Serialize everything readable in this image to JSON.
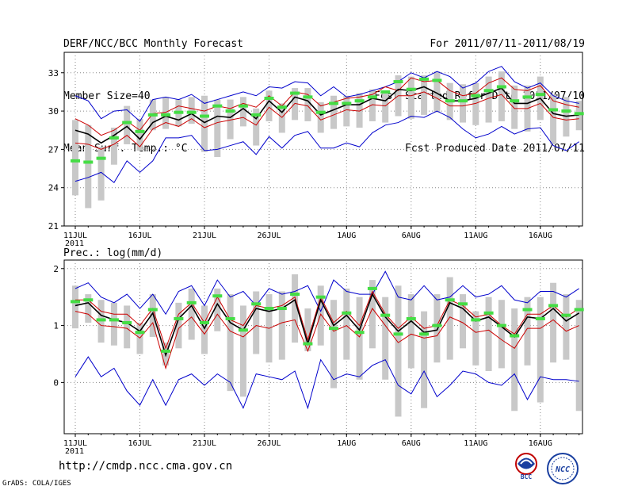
{
  "header": {
    "title": "DERF/NCC/BCC Monthly Forecast",
    "member_size": "Member Size=40",
    "variable": "Mean Surf. Temp.: °C",
    "period": "For 2011/07/11-2011/08/19",
    "start_date": "Fcst Started Refer Date 2011/07/10",
    "produced_date": "Fcst Produced Date 2011/07/11"
  },
  "footer": {
    "url": "http://cmdp.ncc.cma.gov.cn",
    "credit": "GrADS: COLA/IGES",
    "logo_bcc_text": "BCC",
    "logo_ncc_text": "NCC"
  },
  "colors": {
    "max_min": "#0000cc",
    "spread": "#cc0000",
    "mean": "#000000",
    "member_mean": "#44dd44",
    "box": "#c8c8c8",
    "grid": "#888888"
  },
  "chart_data": [
    {
      "type": "line",
      "title": "Mean Surf. Temp.: °C",
      "x_start": "2011-07-11",
      "x_count": 40,
      "x_tick_labels": [
        "11JUL",
        "16JUL",
        "21JUL",
        "26JUL",
        "1AUG",
        "6AUG",
        "11AUG",
        "16AUG"
      ],
      "x_tick_index": [
        0,
        5,
        10,
        15,
        21,
        26,
        31,
        36
      ],
      "x_year_label": "2011",
      "ylim": [
        21,
        34.6
      ],
      "y_ticks": [
        21,
        24,
        27,
        30,
        33
      ],
      "series": [
        {
          "name": "max",
          "color": "#0000cc",
          "values": [
            31.2,
            30.8,
            29.4,
            30,
            30.1,
            29.2,
            30.9,
            31.1,
            30.9,
            31.3,
            30.6,
            30.9,
            31.2,
            31.5,
            31.2,
            31.9,
            31.8,
            32.3,
            32.2,
            31.2,
            31.9,
            31.1,
            31.3,
            31.6,
            31.9,
            32.3,
            33,
            32.6,
            33.1,
            32.7,
            31.8,
            32.2,
            33.1,
            33.5,
            32.3,
            31.8,
            32.2,
            31.2,
            30.8,
            30.6
          ]
        },
        {
          "name": "spread-upper",
          "color": "#cc0000",
          "values": [
            29.4,
            28.9,
            28.1,
            28.5,
            29.2,
            28.5,
            29.8,
            29.9,
            30.4,
            30.2,
            30,
            30.4,
            30.2,
            30.6,
            30.3,
            31.2,
            30.4,
            31.5,
            31.3,
            30.4,
            30.7,
            31,
            31.1,
            31.3,
            31.9,
            31.6,
            32.6,
            32.3,
            32.4,
            31.6,
            31.2,
            31.4,
            32.2,
            32.6,
            31.7,
            31.6,
            32,
            30.8,
            30.5,
            30.3
          ]
        },
        {
          "name": "ensemble-mean",
          "color": "#000000",
          "values": [
            28.5,
            28.2,
            27.5,
            28.1,
            28.8,
            27.8,
            29.1,
            29.6,
            29.3,
            29.8,
            29.1,
            29.6,
            29.5,
            30.2,
            29.4,
            30.8,
            29.9,
            31.1,
            30.8,
            29.7,
            30.1,
            30.5,
            30.5,
            31,
            30.8,
            31.7,
            31.6,
            31.9,
            31.4,
            30.8,
            30.8,
            31,
            31.4,
            31.8,
            30.6,
            30.6,
            31,
            29.8,
            29.6,
            29.7
          ]
        },
        {
          "name": "spread-lower",
          "color": "#cc0000",
          "values": [
            27.5,
            27.4,
            27,
            27.4,
            28.1,
            27.2,
            28.6,
            29.1,
            28.8,
            29.4,
            28.7,
            29.1,
            29.3,
            29.5,
            28.9,
            30.3,
            29.5,
            30.6,
            30.4,
            29.3,
            29.7,
            30.1,
            30,
            30.5,
            30.4,
            31.2,
            31.2,
            31.5,
            31,
            30.4,
            30.4,
            30.6,
            31,
            31.3,
            30.2,
            30.2,
            30.6,
            29.5,
            29.3,
            29.4
          ]
        },
        {
          "name": "min",
          "color": "#0000cc",
          "values": [
            24.5,
            24.8,
            25.2,
            24.4,
            26.1,
            25.2,
            26.1,
            27.9,
            27.9,
            28.1,
            26.9,
            27,
            27.3,
            27.6,
            26.6,
            28,
            27.1,
            28.1,
            28.4,
            27.1,
            27.1,
            27.5,
            27.2,
            28.3,
            28.9,
            29.1,
            29.6,
            29.5,
            30,
            29.5,
            28.6,
            27.9,
            28.2,
            28.8,
            28.2,
            28.6,
            28.7,
            27.3,
            26.9,
            27.6
          ]
        }
      ],
      "member_mean": [
        26.1,
        26,
        26.3,
        27.9,
        29.1,
        28.4,
        29.7,
        29.7,
        29.9,
        29.9,
        29.6,
        30.4,
        30,
        30.4,
        29.7,
        31,
        30.3,
        31.4,
        31.1,
        29.9,
        30.6,
        30.6,
        30.8,
        31.1,
        31.5,
        32.3,
        31.7,
        32.5,
        32.4,
        30.8,
        30.8,
        31.2,
        31.6,
        31.9,
        30.8,
        31.1,
        31.3,
        30.1,
        30,
        29.8
      ],
      "box_ranges": [
        [
          23.4,
          29.3
        ],
        [
          22.4,
          28.9
        ],
        [
          23,
          27.2
        ],
        [
          25.8,
          28.7
        ],
        [
          27.4,
          30.4
        ],
        [
          26.9,
          29.4
        ],
        [
          28.5,
          30.9
        ],
        [
          28.6,
          31.1
        ],
        [
          28.8,
          30.9
        ],
        [
          29,
          31.1
        ],
        [
          26.8,
          31.2
        ],
        [
          26.4,
          30.9
        ],
        [
          27.8,
          30.9
        ],
        [
          28.8,
          31.1
        ],
        [
          27.3,
          30.2
        ],
        [
          29.2,
          31.6
        ],
        [
          28.3,
          30.6
        ],
        [
          29.3,
          31.8
        ],
        [
          29.2,
          31.8
        ],
        [
          28.3,
          30.7
        ],
        [
          28.6,
          31.2
        ],
        [
          28.8,
          31.2
        ],
        [
          28.7,
          31.4
        ],
        [
          29.2,
          31.7
        ],
        [
          29.1,
          31.6
        ],
        [
          29.6,
          32.8
        ],
        [
          29.4,
          32.7
        ],
        [
          29.7,
          32.8
        ],
        [
          29.9,
          33.1
        ],
        [
          29.3,
          32.2
        ],
        [
          29.1,
          32.1
        ],
        [
          28.9,
          32.2
        ],
        [
          29.1,
          32.7
        ],
        [
          29.2,
          33.1
        ],
        [
          28.6,
          32
        ],
        [
          28.4,
          32
        ],
        [
          29.3,
          32.7
        ],
        [
          27.4,
          31.3
        ],
        [
          28,
          31.1
        ],
        [
          28.5,
          30.8
        ]
      ]
    },
    {
      "type": "line",
      "title": "Prec.: log(mm/d)",
      "x_start": "2011-07-11",
      "x_count": 40,
      "x_tick_labels": [
        "11JUL",
        "16JUL",
        "21JUL",
        "26JUL",
        "1AUG",
        "6AUG",
        "11AUG",
        "16AUG"
      ],
      "x_tick_index": [
        0,
        5,
        10,
        15,
        21,
        26,
        31,
        36
      ],
      "x_year_label": "2011",
      "ylim": [
        -0.9,
        2.15
      ],
      "y_ticks": [
        0,
        1,
        2
      ],
      "series": [
        {
          "name": "max",
          "color": "#0000cc",
          "values": [
            1.65,
            1.75,
            1.5,
            1.4,
            1.55,
            1.3,
            1.55,
            1.2,
            1.6,
            1.7,
            1.35,
            1.8,
            1.5,
            1.6,
            1.35,
            1.65,
            1.55,
            1.6,
            1.7,
            1.25,
            1.8,
            1.6,
            1.55,
            1.55,
            1.95,
            1.5,
            1.45,
            1.7,
            1.45,
            1.5,
            1.7,
            1.5,
            1.55,
            1.7,
            1.45,
            1.4,
            1.6,
            1.6,
            1.5,
            1.65
          ]
        },
        {
          "name": "spread-upper",
          "color": "#cc0000",
          "values": [
            1.45,
            1.45,
            1.25,
            1.2,
            1.2,
            1,
            1.3,
            0.6,
            1.2,
            1.4,
            1.05,
            1.5,
            1.1,
            1,
            1.35,
            1.3,
            1.35,
            1.5,
            0.75,
            1.5,
            1.05,
            1.25,
            1,
            1.6,
            1.2,
            0.95,
            1.15,
            0.95,
            1,
            1.45,
            1.35,
            1.15,
            1.2,
            1,
            0.85,
            1.2,
            1.2,
            1.35,
            1.15,
            1.3
          ]
        },
        {
          "name": "ensemble-mean",
          "color": "#000000",
          "values": [
            1.35,
            1.4,
            1.18,
            1.1,
            1.05,
            0.9,
            1.22,
            0.48,
            1.12,
            1.35,
            0.95,
            1.38,
            1.05,
            0.92,
            1.3,
            1.25,
            1.3,
            1.45,
            0.68,
            1.45,
            1.0,
            1.18,
            0.92,
            1.55,
            1.15,
            0.9,
            1.08,
            0.88,
            0.92,
            1.4,
            1.3,
            1.08,
            1.15,
            0.98,
            0.8,
            1.15,
            1.12,
            1.3,
            1.08,
            1.22
          ]
        },
        {
          "name": "spread-lower",
          "color": "#cc0000",
          "values": [
            1.25,
            1.2,
            1.0,
            0.98,
            0.95,
            0.78,
            1.05,
            0.25,
            0.95,
            1.15,
            0.85,
            1.2,
            0.9,
            0.8,
            1.0,
            0.95,
            1.05,
            1.1,
            0.55,
            1.2,
            0.9,
            1.0,
            0.8,
            1.3,
            1.0,
            0.7,
            0.85,
            0.78,
            0.82,
            1.15,
            1.05,
            0.88,
            0.92,
            0.75,
            0.6,
            0.95,
            0.95,
            1.1,
            0.9,
            1.0
          ]
        },
        {
          "name": "min",
          "color": "#0000cc",
          "values": [
            0.1,
            0.45,
            0.1,
            0.25,
            -0.15,
            -0.4,
            0.05,
            -0.4,
            0.05,
            0.15,
            -0.05,
            0.15,
            0.0,
            -0.45,
            0.15,
            0.1,
            0.05,
            0.2,
            -0.45,
            0.4,
            0.05,
            0.15,
            0.1,
            0.3,
            0.4,
            -0.05,
            -0.2,
            0.2,
            -0.25,
            -0.05,
            0.2,
            0.15,
            0.0,
            -0.05,
            0.15,
            -0.3,
            0.1,
            0.05,
            0.05,
            0.02
          ]
        },
        {
          "name": "max-upper-bound-unused",
          "color": "#0000cc",
          "values": []
        }
      ],
      "member_mean": [
        1.42,
        1.45,
        1.1,
        1.1,
        1.05,
        0.88,
        1.28,
        0.55,
        1.12,
        1.4,
        1.05,
        1.52,
        1.12,
        0.92,
        1.38,
        1.3,
        1.3,
        1.55,
        0.68,
        1.5,
        0.95,
        1.22,
        0.88,
        1.65,
        1.18,
        0.85,
        1.12,
        0.85,
        1.0,
        1.45,
        1.38,
        1.1,
        1.22,
        1.0,
        0.82,
        1.28,
        1.12,
        1.35,
        1.18,
        1.28
      ],
      "box_ranges": [
        [
          0.95,
          1.7
        ],
        [
          1.05,
          1.55
        ],
        [
          0.7,
          1.45
        ],
        [
          0.65,
          1.4
        ],
        [
          0.6,
          1.35
        ],
        [
          0.5,
          1.05
        ],
        [
          0.8,
          1.55
        ],
        [
          0.3,
          0.7
        ],
        [
          0.6,
          1.4
        ],
        [
          0.75,
          1.65
        ],
        [
          0.5,
          1.35
        ],
        [
          0.9,
          1.65
        ],
        [
          -0.15,
          1.55
        ],
        [
          -0.25,
          1.35
        ],
        [
          0.5,
          1.6
        ],
        [
          0.35,
          1.55
        ],
        [
          0.4,
          1.6
        ],
        [
          0.7,
          1.9
        ],
        [
          0.55,
          1.3
        ],
        [
          0.65,
          1.7
        ],
        [
          -0.1,
          1.45
        ],
        [
          0.4,
          1.65
        ],
        [
          0.05,
          1.5
        ],
        [
          0.6,
          1.8
        ],
        [
          0.05,
          1.5
        ],
        [
          -0.6,
          1.7
        ],
        [
          0.25,
          1.55
        ],
        [
          -0.45,
          1.25
        ],
        [
          0.35,
          1.55
        ],
        [
          0.4,
          1.85
        ],
        [
          0.6,
          1.55
        ],
        [
          0.3,
          1.25
        ],
        [
          0.2,
          1.5
        ],
        [
          0.25,
          1.45
        ],
        [
          -0.5,
          1.3
        ],
        [
          0.3,
          1.5
        ],
        [
          -0.35,
          1.5
        ],
        [
          0.35,
          1.75
        ],
        [
          0.4,
          1.55
        ],
        [
          -0.5,
          1.45
        ]
      ]
    }
  ]
}
